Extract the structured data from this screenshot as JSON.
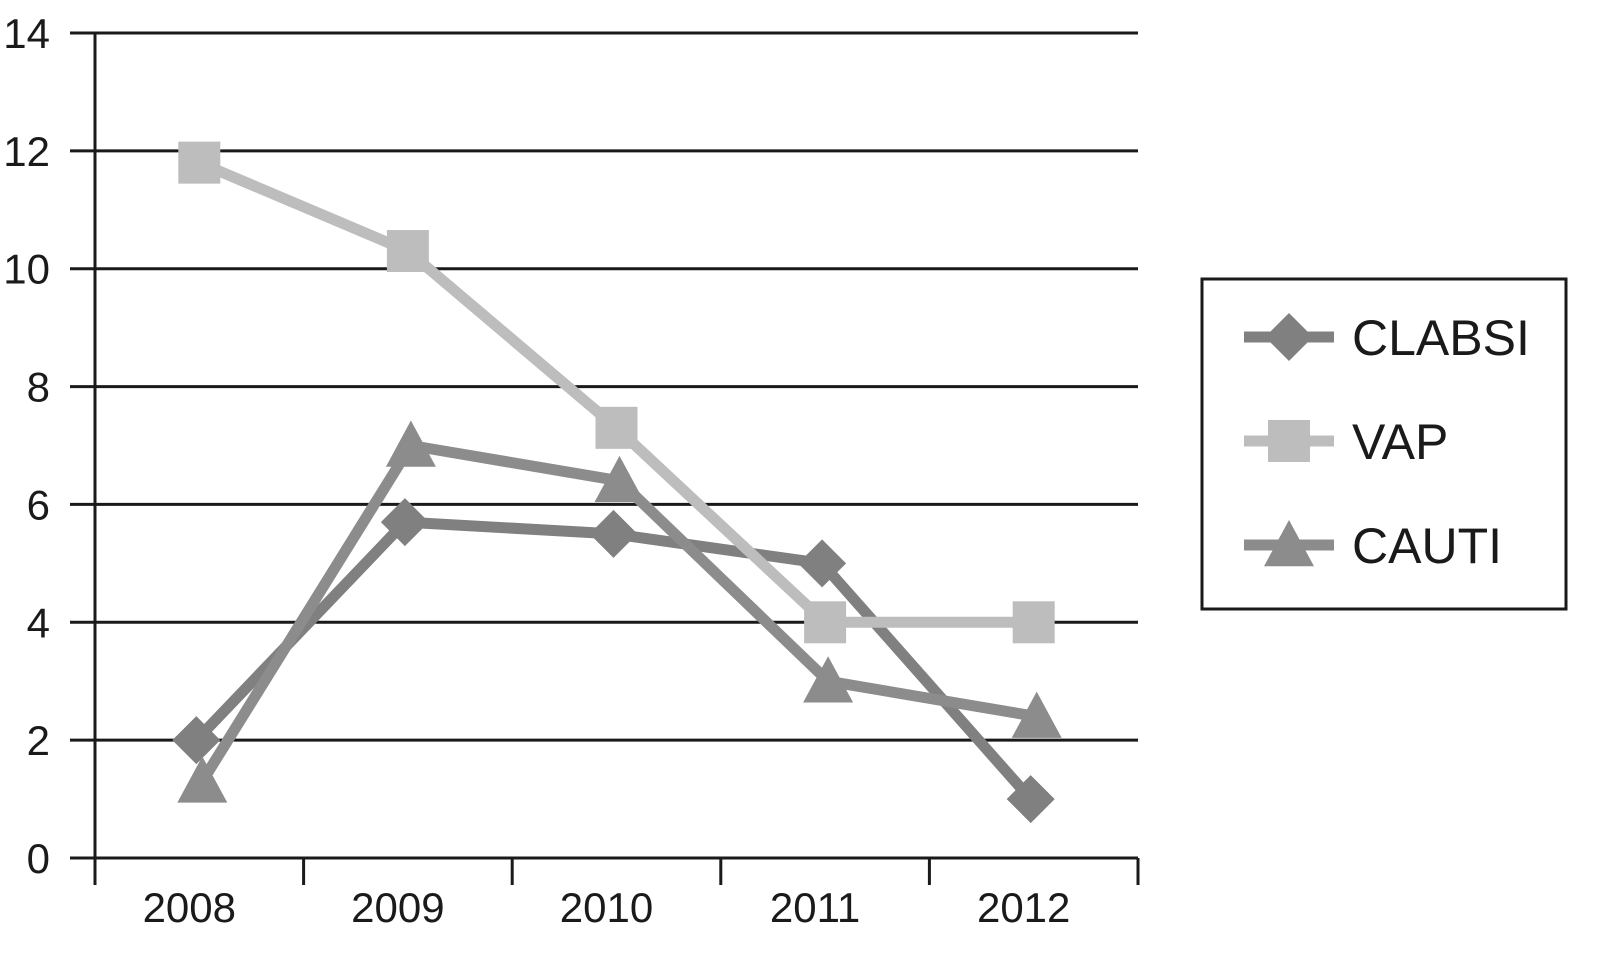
{
  "chart_data": {
    "type": "line",
    "title": "",
    "xlabel": "",
    "ylabel": "",
    "categories": [
      "2008",
      "2009",
      "2010",
      "2011",
      "2012"
    ],
    "ylim": [
      0,
      14
    ],
    "yticks": [
      0,
      2,
      4,
      6,
      8,
      10,
      12,
      14
    ],
    "grid": "horizontal",
    "legend_position": "right",
    "series": [
      {
        "name": "CLABSI",
        "marker": "diamond",
        "color": "#808080",
        "values": [
          2.0,
          5.7,
          5.5,
          5.0,
          1.0
        ]
      },
      {
        "name": "VAP",
        "marker": "square",
        "color": "#bdbdbd",
        "values": [
          11.8,
          10.3,
          7.3,
          4.0,
          4.0
        ]
      },
      {
        "name": "CAUTI",
        "marker": "triangle",
        "color": "#8c8c8c",
        "values": [
          1.3,
          7.0,
          6.4,
          3.0,
          2.4
        ]
      }
    ]
  }
}
